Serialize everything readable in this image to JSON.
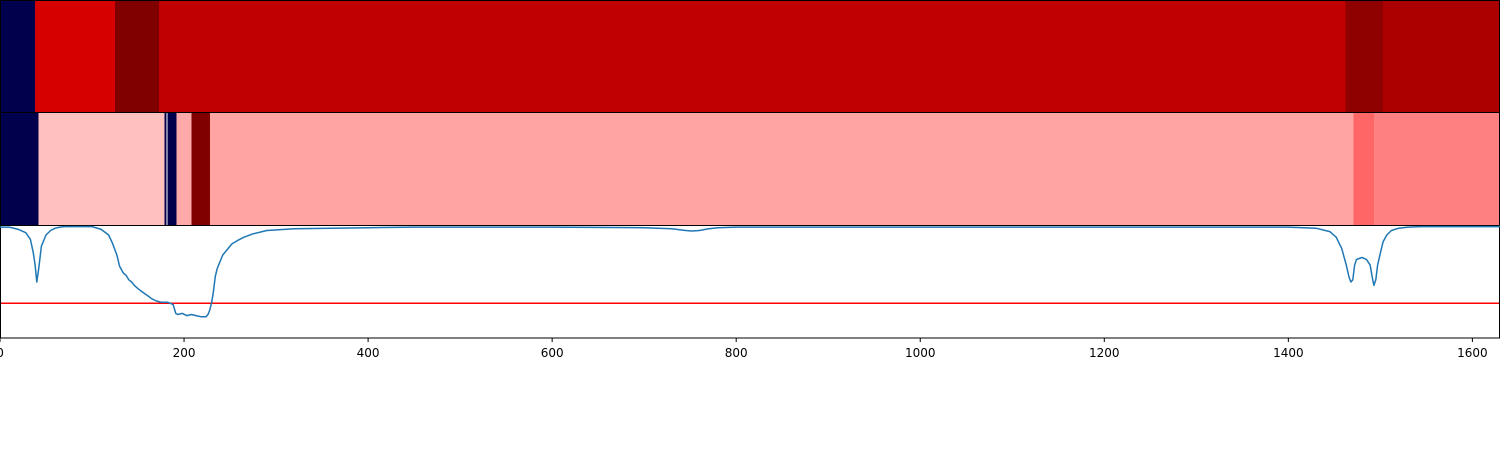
{
  "chart_data": {
    "type": "heatmap",
    "x_range": [
      0,
      1630
    ],
    "x_ticks": [
      "0",
      "200",
      "400",
      "600",
      "800",
      "1000",
      "1200",
      "1400",
      "1600"
    ],
    "x_tick_values": [
      0,
      200,
      400,
      600,
      800,
      1000,
      1200,
      1400,
      1600
    ],
    "grid": false,
    "segmentation_rows": [
      {
        "segments": [
          {
            "start": 0,
            "end": 38,
            "color": "#00004c"
          },
          {
            "start": 38,
            "end": 125,
            "color": "#d60000"
          },
          {
            "start": 125,
            "end": 173,
            "color": "#800000"
          },
          {
            "start": 173,
            "end": 1462,
            "color": "#c00000"
          },
          {
            "start": 1462,
            "end": 1503,
            "color": "#8f0000"
          },
          {
            "start": 1503,
            "end": 1630,
            "color": "#aa0000"
          }
        ]
      },
      {
        "segments": [
          {
            "start": 0,
            "end": 42,
            "color": "#00004c"
          },
          {
            "start": 42,
            "end": 179,
            "color": "#ffc0c0"
          },
          {
            "start": 179,
            "end": 181,
            "color": "#00004c"
          },
          {
            "start": 181,
            "end": 182,
            "color": "#ffffff"
          },
          {
            "start": 182,
            "end": 192,
            "color": "#00004c"
          },
          {
            "start": 192,
            "end": 208,
            "color": "#ffaaaa"
          },
          {
            "start": 208,
            "end": 228,
            "color": "#800000"
          },
          {
            "start": 228,
            "end": 1471,
            "color": "#ffa3a3"
          },
          {
            "start": 1471,
            "end": 1493,
            "color": "#ff6666"
          },
          {
            "start": 1493,
            "end": 1630,
            "color": "#ff8080"
          }
        ]
      }
    ],
    "signal": {
      "ylim": [
        0,
        1
      ],
      "x": [
        0,
        10,
        20,
        28,
        33,
        36,
        38,
        40,
        42,
        45,
        50,
        55,
        60,
        65,
        70,
        100,
        110,
        118,
        122,
        127,
        130,
        134,
        137,
        140,
        143,
        146,
        150,
        155,
        160,
        165,
        170,
        175,
        182,
        188,
        191,
        193,
        198,
        203,
        208,
        213,
        218,
        224,
        226,
        228,
        230,
        232,
        234,
        236,
        238,
        242,
        247,
        252,
        258,
        265,
        275,
        290,
        320,
        360,
        400,
        450,
        500,
        600,
        700,
        730,
        745,
        752,
        760,
        770,
        780,
        800,
        900,
        1000,
        1100,
        1200,
        1300,
        1400,
        1430,
        1445,
        1452,
        1458,
        1463,
        1466,
        1468,
        1470,
        1472,
        1474,
        1477,
        1480,
        1485,
        1489,
        1491,
        1493,
        1495,
        1497,
        1500,
        1503,
        1507,
        1512,
        1520,
        1530,
        1545,
        1560,
        1600,
        1630
      ],
      "y": [
        0.99,
        0.99,
        0.97,
        0.94,
        0.88,
        0.77,
        0.66,
        0.5,
        0.62,
        0.82,
        0.92,
        0.96,
        0.98,
        0.99,
        0.995,
        0.995,
        0.97,
        0.92,
        0.85,
        0.74,
        0.64,
        0.58,
        0.56,
        0.52,
        0.5,
        0.47,
        0.44,
        0.41,
        0.38,
        0.35,
        0.33,
        0.32,
        0.32,
        0.3,
        0.22,
        0.21,
        0.22,
        0.2,
        0.21,
        0.2,
        0.19,
        0.19,
        0.21,
        0.25,
        0.32,
        0.42,
        0.55,
        0.62,
        0.66,
        0.74,
        0.79,
        0.84,
        0.87,
        0.9,
        0.93,
        0.96,
        0.975,
        0.98,
        0.985,
        0.99,
        0.99,
        0.99,
        0.985,
        0.975,
        0.96,
        0.955,
        0.96,
        0.975,
        0.985,
        0.99,
        0.99,
        0.99,
        0.99,
        0.99,
        0.99,
        0.99,
        0.98,
        0.95,
        0.9,
        0.8,
        0.65,
        0.54,
        0.5,
        0.52,
        0.65,
        0.7,
        0.71,
        0.72,
        0.7,
        0.65,
        0.55,
        0.47,
        0.52,
        0.65,
        0.76,
        0.86,
        0.92,
        0.96,
        0.98,
        0.99,
        0.995,
        0.995,
        0.995,
        0.995
      ],
      "threshold": 0.31,
      "line_color": "#1f77b4",
      "threshold_color": "#ff0000"
    }
  }
}
